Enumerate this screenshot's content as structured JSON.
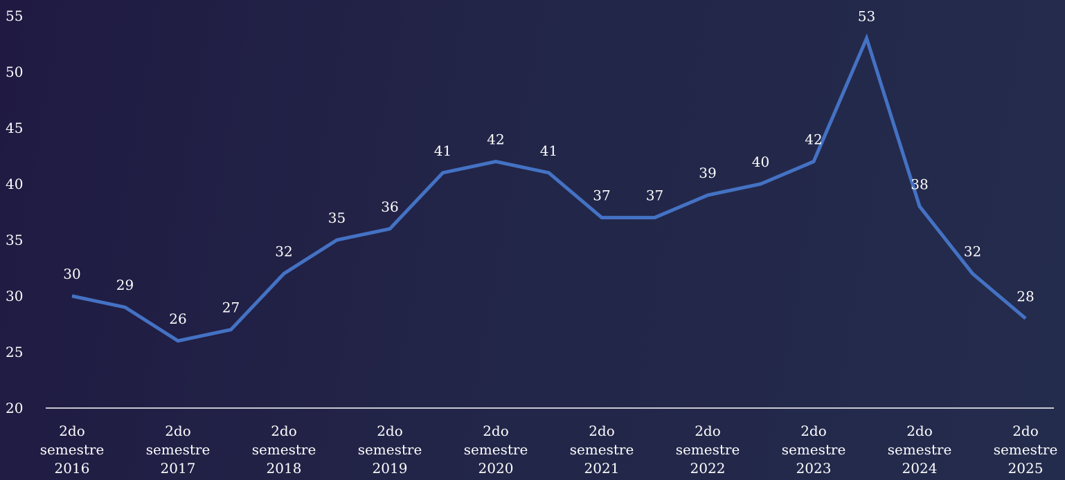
{
  "chart_data": {
    "type": "line",
    "title": "",
    "xlabel": "",
    "ylabel": "",
    "ylim": [
      20,
      55
    ],
    "yticks": [
      "20",
      "25",
      "30",
      "35",
      "40",
      "45",
      "50",
      "55"
    ],
    "x": [
      0,
      1,
      2,
      3,
      4,
      5,
      6,
      7,
      8,
      9,
      10,
      11,
      12,
      13,
      14,
      15,
      16,
      17,
      18
    ],
    "x_tick_labels": [
      {
        "index": 0,
        "lines": [
          "2do",
          "semestre",
          "2016"
        ]
      },
      {
        "index": 2,
        "lines": [
          "2do",
          "semestre",
          "2017"
        ]
      },
      {
        "index": 4,
        "lines": [
          "2do",
          "semestre",
          "2018"
        ]
      },
      {
        "index": 6,
        "lines": [
          "2do",
          "semestre",
          "2019"
        ]
      },
      {
        "index": 8,
        "lines": [
          "2do",
          "semestre",
          "2020"
        ]
      },
      {
        "index": 10,
        "lines": [
          "2do",
          "semestre",
          "2021"
        ]
      },
      {
        "index": 12,
        "lines": [
          "2do",
          "semestre",
          "2022"
        ]
      },
      {
        "index": 14,
        "lines": [
          "2do",
          "semestre",
          "2023"
        ]
      },
      {
        "index": 16,
        "lines": [
          "2do",
          "semestre",
          "2024"
        ]
      },
      {
        "index": 18,
        "lines": [
          "2do",
          "semestre",
          "2025"
        ]
      }
    ],
    "series": [
      {
        "values": [
          30,
          29,
          26,
          27,
          32,
          35,
          36,
          41,
          42,
          41,
          37,
          37,
          39,
          40,
          42,
          53,
          38,
          32,
          28
        ],
        "labels": [
          "30",
          "29",
          "26",
          "27",
          "32",
          "35",
          "36",
          "41",
          "42",
          "41",
          "37",
          "37",
          "39",
          "40",
          "42",
          "53",
          "38",
          "32",
          "28"
        ],
        "color": "#4472c4"
      }
    ],
    "grid": false,
    "legend": "none",
    "axis_color": "#ffffff",
    "text_color": "#ffffff"
  }
}
